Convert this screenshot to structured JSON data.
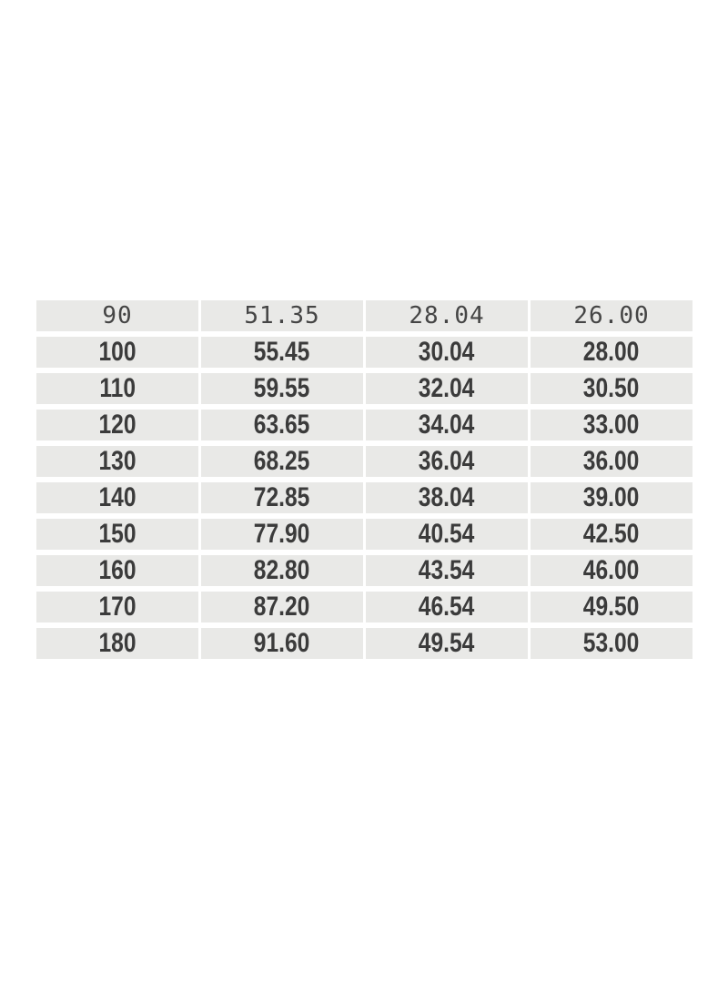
{
  "page": {
    "background": "#ffffff"
  },
  "table": {
    "cell_background": "#e9e9e7",
    "gutter_color": "#ffffff",
    "text_color": "#3b3b3b",
    "first_row_text_color": "#454545",
    "rows": [
      [
        "90",
        "51.35",
        "28.04",
        "26.00"
      ],
      [
        "100",
        "55.45",
        "30.04",
        "28.00"
      ],
      [
        "110",
        "59.55",
        "32.04",
        "30.50"
      ],
      [
        "120",
        "63.65",
        "34.04",
        "33.00"
      ],
      [
        "130",
        "68.25",
        "36.04",
        "36.00"
      ],
      [
        "140",
        "72.85",
        "38.04",
        "39.00"
      ],
      [
        "150",
        "77.90",
        "40.54",
        "42.50"
      ],
      [
        "160",
        "82.80",
        "43.54",
        "46.00"
      ],
      [
        "170",
        "87.20",
        "46.54",
        "49.50"
      ],
      [
        "180",
        "91.60",
        "49.54",
        "53.00"
      ]
    ]
  },
  "chart_data": {
    "type": "table",
    "title": "",
    "columns": [
      "",
      "",
      "",
      ""
    ],
    "rows": [
      [
        90,
        51.35,
        28.04,
        26.0
      ],
      [
        100,
        55.45,
        30.04,
        28.0
      ],
      [
        110,
        59.55,
        32.04,
        30.5
      ],
      [
        120,
        63.65,
        34.04,
        33.0
      ],
      [
        130,
        68.25,
        36.04,
        36.0
      ],
      [
        140,
        72.85,
        38.04,
        39.0
      ],
      [
        150,
        77.9,
        40.54,
        42.5
      ],
      [
        160,
        82.8,
        43.54,
        46.0
      ],
      [
        170,
        87.2,
        46.54,
        49.5
      ],
      [
        180,
        91.6,
        49.54,
        53.0
      ]
    ],
    "layout": {
      "grid": "white gutters between gray cells",
      "header_visible": false,
      "alignment": "center"
    }
  }
}
